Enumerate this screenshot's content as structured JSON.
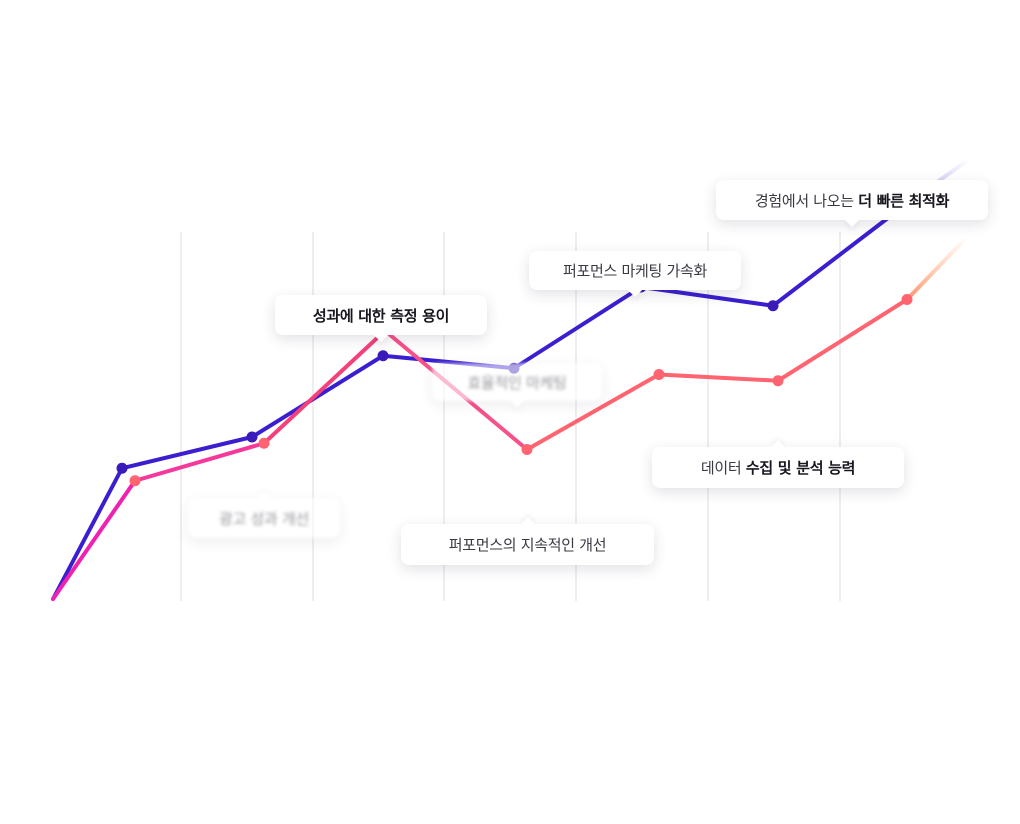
{
  "chart_data": {
    "type": "line",
    "title": "",
    "xlabel": "",
    "ylabel": "",
    "grid": true,
    "x": [
      0,
      1,
      2,
      3,
      4,
      5,
      6,
      7
    ],
    "series": [
      {
        "color": "#3a1fd0",
        "values": [
          1.4,
          2.1,
          2.6,
          3.9,
          3.7,
          5.0,
          4.7,
          6.3
        ]
      },
      {
        "color": "#f5407a",
        "values": [
          1.1,
          1.9,
          2.5,
          4.3,
          2.4,
          3.6,
          3.5,
          4.8
        ]
      }
    ],
    "colors": {
      "blue": "#3a1fd0",
      "pink": "#f5407a",
      "coral": "#ff6470",
      "magenta": "#f020b0"
    }
  },
  "callouts": {
    "ad": "광고 성과 개선",
    "measure": "성과에 대한 측정 용이",
    "efficient": "효율적인 마케팅",
    "improve": "퍼포먼스의 지속적인 개선",
    "accelerate": "퍼포먼스 마케팅 가속화",
    "data_pre": "데이터 ",
    "data_bold": "수집 및 분석 능력",
    "fast_pre": "경험에서 나오는 ",
    "fast_bold": "더 빠른 최적화"
  }
}
